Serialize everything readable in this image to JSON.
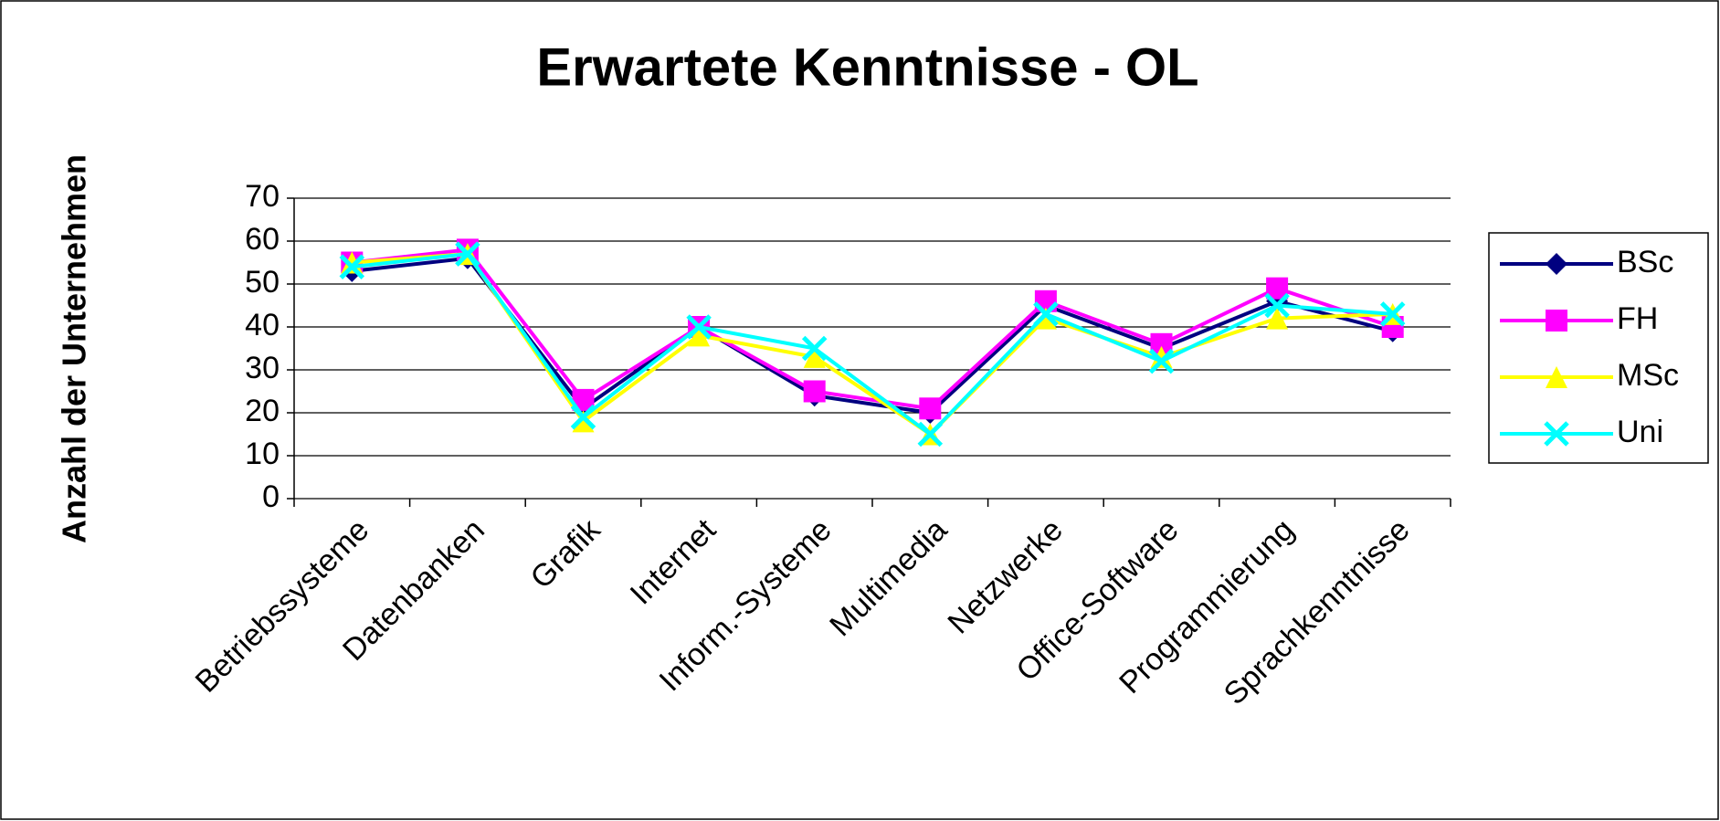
{
  "chart_data": {
    "type": "line",
    "title": "Erwartete Kenntnisse - OL",
    "y_label": "Anzahl der Unternehmen",
    "categories": [
      "Betriebssysteme",
      "Datenbanken",
      "Grafik",
      "Internet",
      "Inform.-Systeme",
      "Multimedia",
      "Netzwerke",
      "Office-Software",
      "Programmierung",
      "Sprachkenntnisse"
    ],
    "series": [
      {
        "name": "BSc",
        "color": "#000080",
        "marker": "diamond",
        "values": [
          53,
          56,
          21,
          40,
          24,
          20,
          45,
          35,
          46,
          39
        ]
      },
      {
        "name": "FH",
        "color": "#ff00ff",
        "marker": "square",
        "values": [
          55,
          58,
          23,
          40,
          25,
          21,
          46,
          36,
          49,
          40
        ]
      },
      {
        "name": "MSc",
        "color": "#ffff00",
        "marker": "triangle",
        "values": [
          55,
          57,
          18,
          38,
          33,
          15,
          42,
          33,
          42,
          43
        ]
      },
      {
        "name": "Uni",
        "color": "#00ffff",
        "marker": "x",
        "values": [
          54,
          57,
          19,
          40,
          35,
          15,
          43,
          32,
          45,
          43
        ]
      }
    ],
    "ylim": [
      0,
      70
    ],
    "yticks": [
      0,
      10,
      20,
      30,
      40,
      50,
      60,
      70
    ],
    "grid": true,
    "legend": "right"
  }
}
